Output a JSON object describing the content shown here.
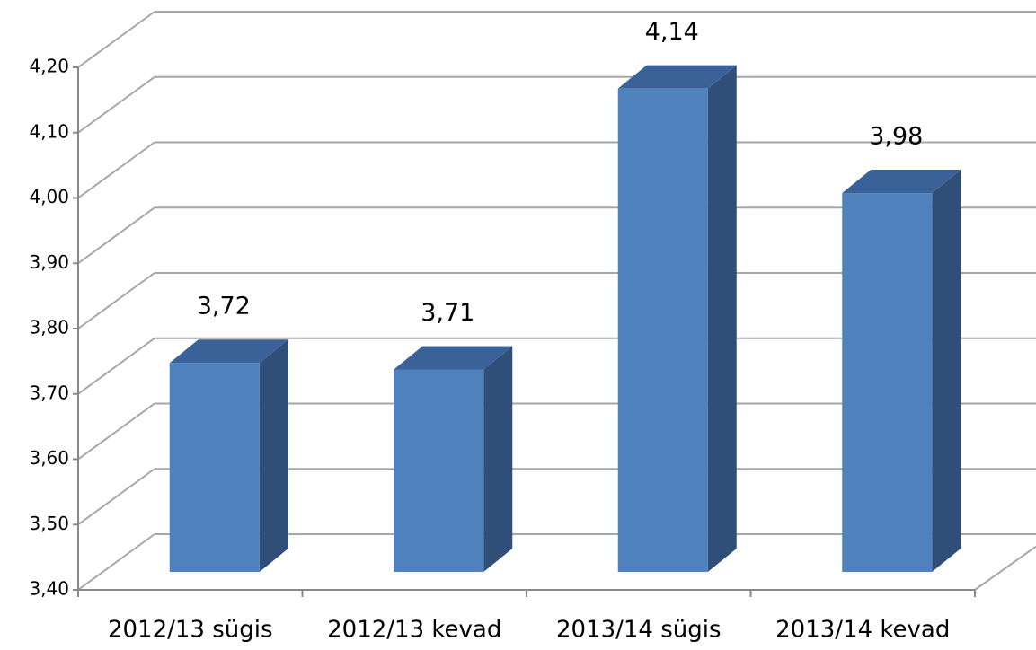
{
  "chart_data": {
    "type": "bar3d",
    "categories": [
      "2012/13 sügis",
      "2012/13 kevad",
      "2013/14 sügis",
      "2013/14 kevad"
    ],
    "values": [
      3.72,
      3.71,
      4.14,
      3.98
    ],
    "value_labels": [
      "3,72",
      "3,71",
      "4,14",
      "3,98"
    ],
    "color": "#4f81bd",
    "ylim": [
      3.4,
      4.2
    ],
    "yticks": [
      {
        "value": 3.4,
        "label": "3,40"
      },
      {
        "value": 3.5,
        "label": "3,50"
      },
      {
        "value": 3.6,
        "label": "3,60"
      },
      {
        "value": 3.7,
        "label": "3,70"
      },
      {
        "value": 3.8,
        "label": "3,80"
      },
      {
        "value": 3.9,
        "label": "3,90"
      },
      {
        "value": 4.0,
        "label": "4,00"
      },
      {
        "value": 4.1,
        "label": "4,10"
      },
      {
        "value": 4.2,
        "label": "4,20"
      }
    ],
    "grid": true
  }
}
